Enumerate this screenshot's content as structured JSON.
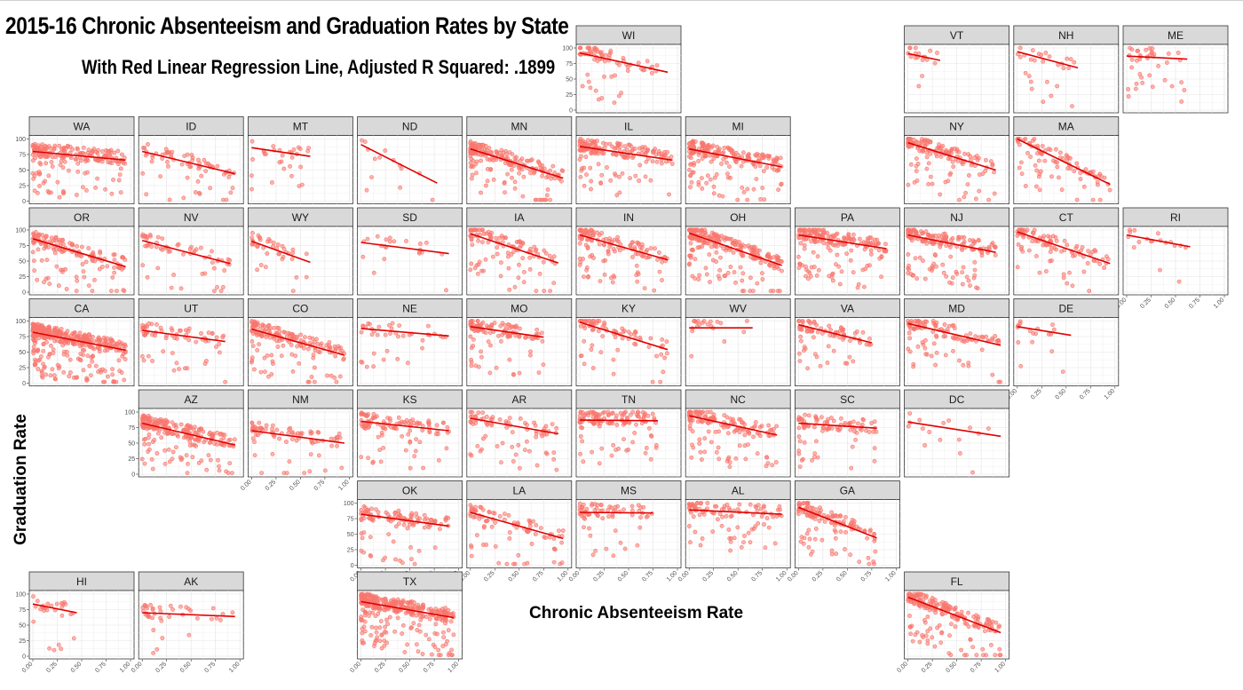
{
  "title": "2015-16 Chronic Absenteeism and Graduation Rates by State",
  "subtitle": "With Red Linear Regression Line, Adjusted R Squared: .1899",
  "chart_data": {
    "type": "scatter",
    "layout": "faceted small multiples arranged as a map of US states",
    "title": "2015-16 Chronic Absenteeism and Graduation Rates by State",
    "subtitle": "With Red Linear Regression Line, Adjusted R Squared: .1899",
    "xlabel": "Chronic Absenteeism Rate",
    "ylabel": "Graduation Rate",
    "xlim": [
      0,
      1
    ],
    "ylim": [
      0,
      100
    ],
    "x_ticks": [
      "0.00",
      "0.25",
      "0.50",
      "0.75",
      "1.00"
    ],
    "y_ticks": [
      "0",
      "25",
      "50",
      "75",
      "100"
    ],
    "grid": true,
    "point_color": "#f8766d",
    "line_color": "#e00000",
    "strip_color": "#d9d9d9",
    "facets": [
      {
        "state": "WI",
        "col": 5,
        "row": 0,
        "n": 70,
        "x_max": 0.9,
        "fit": {
          "x0": 0.0,
          "x1": 0.9,
          "y0": 92,
          "y1": 61
        }
      },
      {
        "state": "VT",
        "col": 8,
        "row": 0,
        "n": 18,
        "x_max": 0.33,
        "fit": {
          "x0": 0.0,
          "x1": 0.33,
          "y0": 91,
          "y1": 80
        }
      },
      {
        "state": "NH",
        "col": 9,
        "row": 0,
        "n": 28,
        "x_max": 0.62,
        "fit": {
          "x0": 0.0,
          "x1": 0.62,
          "y0": 94,
          "y1": 68
        }
      },
      {
        "state": "ME",
        "col": 10,
        "row": 0,
        "n": 40,
        "x_max": 0.62,
        "fit": {
          "x0": 0.0,
          "x1": 0.62,
          "y0": 87,
          "y1": 82
        }
      },
      {
        "state": "WA",
        "col": 0,
        "row": 1,
        "n": 200,
        "x_max": 0.95,
        "fit": {
          "x0": 0.0,
          "x1": 0.95,
          "y0": 80,
          "y1": 66
        }
      },
      {
        "state": "ID",
        "col": 1,
        "row": 1,
        "n": 70,
        "x_max": 0.95,
        "fit": {
          "x0": 0.0,
          "x1": 0.95,
          "y0": 80,
          "y1": 44
        }
      },
      {
        "state": "MT",
        "col": 2,
        "row": 1,
        "n": 30,
        "x_max": 0.6,
        "fit": {
          "x0": 0.0,
          "x1": 0.6,
          "y0": 86,
          "y1": 72
        }
      },
      {
        "state": "ND",
        "col": 3,
        "row": 1,
        "n": 14,
        "x_max": 0.78,
        "fit": {
          "x0": 0.0,
          "x1": 0.78,
          "y0": 91,
          "y1": 29
        }
      },
      {
        "state": "MN",
        "col": 4,
        "row": 1,
        "n": 190,
        "x_max": 0.95,
        "fit": {
          "x0": 0.0,
          "x1": 0.95,
          "y0": 84,
          "y1": 37
        }
      },
      {
        "state": "IL",
        "col": 5,
        "row": 1,
        "n": 170,
        "x_max": 0.95,
        "fit": {
          "x0": 0.0,
          "x1": 0.95,
          "y0": 88,
          "y1": 66
        }
      },
      {
        "state": "MI",
        "col": 6,
        "row": 1,
        "n": 200,
        "x_max": 0.95,
        "fit": {
          "x0": 0.0,
          "x1": 0.95,
          "y0": 84,
          "y1": 55
        }
      },
      {
        "state": "NY",
        "col": 8,
        "row": 1,
        "n": 140,
        "x_max": 0.9,
        "fit": {
          "x0": 0.0,
          "x1": 0.9,
          "y0": 94,
          "y1": 50
        }
      },
      {
        "state": "MA",
        "col": 9,
        "row": 1,
        "n": 90,
        "x_max": 0.95,
        "fit": {
          "x0": 0.0,
          "x1": 0.95,
          "y0": 100,
          "y1": 27
        }
      },
      {
        "state": "OR",
        "col": 0,
        "row": 2,
        "n": 140,
        "x_max": 0.95,
        "fit": {
          "x0": 0.0,
          "x1": 0.95,
          "y0": 86,
          "y1": 41
        }
      },
      {
        "state": "NV",
        "col": 1,
        "row": 2,
        "n": 60,
        "x_max": 0.9,
        "fit": {
          "x0": 0.0,
          "x1": 0.9,
          "y0": 83,
          "y1": 46
        }
      },
      {
        "state": "WY",
        "col": 2,
        "row": 2,
        "n": 40,
        "x_max": 0.6,
        "fit": {
          "x0": 0.0,
          "x1": 0.6,
          "y0": 82,
          "y1": 48
        }
      },
      {
        "state": "SD",
        "col": 3,
        "row": 2,
        "n": 22,
        "x_max": 0.9,
        "fit": {
          "x0": 0.0,
          "x1": 0.9,
          "y0": 80,
          "y1": 62
        }
      },
      {
        "state": "IA",
        "col": 4,
        "row": 2,
        "n": 110,
        "x_max": 0.9,
        "fit": {
          "x0": 0.0,
          "x1": 0.9,
          "y0": 94,
          "y1": 47
        }
      },
      {
        "state": "IN",
        "col": 5,
        "row": 2,
        "n": 130,
        "x_max": 0.9,
        "fit": {
          "x0": 0.0,
          "x1": 0.9,
          "y0": 92,
          "y1": 52
        }
      },
      {
        "state": "OH",
        "col": 6,
        "row": 2,
        "n": 240,
        "x_max": 0.95,
        "fit": {
          "x0": 0.0,
          "x1": 0.95,
          "y0": 95,
          "y1": 43
        }
      },
      {
        "state": "PA",
        "col": 7,
        "row": 2,
        "n": 190,
        "x_max": 0.9,
        "fit": {
          "x0": 0.0,
          "x1": 0.9,
          "y0": 92,
          "y1": 70
        }
      },
      {
        "state": "NJ",
        "col": 8,
        "row": 2,
        "n": 170,
        "x_max": 0.9,
        "fit": {
          "x0": 0.0,
          "x1": 0.9,
          "y0": 92,
          "y1": 64
        }
      },
      {
        "state": "CT",
        "col": 9,
        "row": 2,
        "n": 100,
        "x_max": 0.95,
        "fit": {
          "x0": 0.0,
          "x1": 0.95,
          "y0": 97,
          "y1": 46
        }
      },
      {
        "state": "RI",
        "col": 10,
        "row": 2,
        "n": 18,
        "x_max": 0.65,
        "fit": {
          "x0": 0.0,
          "x1": 0.65,
          "y0": 92,
          "y1": 73
        }
      },
      {
        "state": "CA",
        "col": 0,
        "row": 3,
        "n": 380,
        "x_max": 0.95,
        "fit": {
          "x0": 0.0,
          "x1": 0.95,
          "y0": 82,
          "y1": 53
        }
      },
      {
        "state": "UT",
        "col": 1,
        "row": 3,
        "n": 70,
        "x_max": 0.85,
        "fit": {
          "x0": 0.0,
          "x1": 0.85,
          "y0": 85,
          "y1": 67
        }
      },
      {
        "state": "CO",
        "col": 2,
        "row": 3,
        "n": 170,
        "x_max": 0.95,
        "fit": {
          "x0": 0.0,
          "x1": 0.95,
          "y0": 87,
          "y1": 45
        }
      },
      {
        "state": "NE",
        "col": 3,
        "row": 3,
        "n": 40,
        "x_max": 0.9,
        "fit": {
          "x0": 0.0,
          "x1": 0.9,
          "y0": 88,
          "y1": 76
        }
      },
      {
        "state": "MO",
        "col": 4,
        "row": 3,
        "n": 110,
        "x_max": 0.75,
        "fit": {
          "x0": 0.0,
          "x1": 0.75,
          "y0": 91,
          "y1": 74
        }
      },
      {
        "state": "KY",
        "col": 5,
        "row": 3,
        "n": 80,
        "x_max": 0.9,
        "fit": {
          "x0": 0.0,
          "x1": 0.9,
          "y0": 98,
          "y1": 54
        }
      },
      {
        "state": "WV",
        "col": 6,
        "row": 3,
        "n": 20,
        "x_max": 0.65,
        "fit": {
          "x0": 0.0,
          "x1": 0.65,
          "y0": 89,
          "y1": 89
        }
      },
      {
        "state": "VA",
        "col": 7,
        "row": 3,
        "n": 80,
        "x_max": 0.75,
        "fit": {
          "x0": 0.0,
          "x1": 0.75,
          "y0": 94,
          "y1": 65
        }
      },
      {
        "state": "MD",
        "col": 8,
        "row": 3,
        "n": 110,
        "x_max": 0.95,
        "fit": {
          "x0": 0.0,
          "x1": 0.95,
          "y0": 96,
          "y1": 61
        }
      },
      {
        "state": "DE",
        "col": 9,
        "row": 3,
        "n": 18,
        "x_max": 0.55,
        "fit": {
          "x0": 0.0,
          "x1": 0.55,
          "y0": 91,
          "y1": 77
        }
      },
      {
        "state": "AZ",
        "col": 1,
        "row": 4,
        "n": 220,
        "x_max": 0.95,
        "fit": {
          "x0": 0.0,
          "x1": 0.95,
          "y0": 82,
          "y1": 47
        }
      },
      {
        "state": "NM",
        "col": 2,
        "row": 4,
        "n": 80,
        "x_max": 0.95,
        "fit": {
          "x0": 0.0,
          "x1": 0.95,
          "y0": 70,
          "y1": 50
        }
      },
      {
        "state": "KS",
        "col": 3,
        "row": 4,
        "n": 110,
        "x_max": 0.9,
        "fit": {
          "x0": 0.0,
          "x1": 0.9,
          "y0": 85,
          "y1": 70
        }
      },
      {
        "state": "AR",
        "col": 4,
        "row": 4,
        "n": 80,
        "x_max": 0.9,
        "fit": {
          "x0": 0.0,
          "x1": 0.9,
          "y0": 90,
          "y1": 65
        }
      },
      {
        "state": "TN",
        "col": 5,
        "row": 4,
        "n": 130,
        "x_max": 0.8,
        "fit": {
          "x0": 0.0,
          "x1": 0.8,
          "y0": 87,
          "y1": 86
        }
      },
      {
        "state": "NC",
        "col": 6,
        "row": 4,
        "n": 150,
        "x_max": 0.9,
        "fit": {
          "x0": 0.0,
          "x1": 0.9,
          "y0": 94,
          "y1": 63
        }
      },
      {
        "state": "SC",
        "col": 7,
        "row": 4,
        "n": 90,
        "x_max": 0.8,
        "fit": {
          "x0": 0.0,
          "x1": 0.8,
          "y0": 82,
          "y1": 74
        }
      },
      {
        "state": "DC",
        "col": 8,
        "row": 4,
        "n": 16,
        "x_max": 0.95,
        "fit": {
          "x0": 0.0,
          "x1": 0.95,
          "y0": 84,
          "y1": 61
        }
      },
      {
        "state": "OK",
        "col": 3,
        "row": 5,
        "n": 110,
        "x_max": 0.9,
        "fit": {
          "x0": 0.0,
          "x1": 0.9,
          "y0": 82,
          "y1": 63
        }
      },
      {
        "state": "LA",
        "col": 4,
        "row": 5,
        "n": 90,
        "x_max": 0.95,
        "fit": {
          "x0": 0.0,
          "x1": 0.95,
          "y0": 85,
          "y1": 43
        }
      },
      {
        "state": "MS",
        "col": 5,
        "row": 5,
        "n": 70,
        "x_max": 0.75,
        "fit": {
          "x0": 0.0,
          "x1": 0.75,
          "y0": 85,
          "y1": 84
        }
      },
      {
        "state": "AL",
        "col": 6,
        "row": 5,
        "n": 100,
        "x_max": 0.95,
        "fit": {
          "x0": 0.0,
          "x1": 0.95,
          "y0": 89,
          "y1": 82
        }
      },
      {
        "state": "GA",
        "col": 7,
        "row": 5,
        "n": 130,
        "x_max": 0.8,
        "fit": {
          "x0": 0.0,
          "x1": 0.8,
          "y0": 93,
          "y1": 44
        }
      },
      {
        "state": "HI",
        "col": 0,
        "row": 6,
        "n": 28,
        "x_max": 0.45,
        "fit": {
          "x0": 0.0,
          "x1": 0.45,
          "y0": 84,
          "y1": 70
        }
      },
      {
        "state": "AK",
        "col": 1,
        "row": 6,
        "n": 40,
        "x_max": 0.95,
        "fit": {
          "x0": 0.0,
          "x1": 0.95,
          "y0": 70,
          "y1": 64
        }
      },
      {
        "state": "TX",
        "col": 3,
        "row": 6,
        "n": 330,
        "x_max": 0.95,
        "fit": {
          "x0": 0.0,
          "x1": 0.95,
          "y0": 88,
          "y1": 62
        }
      },
      {
        "state": "FL",
        "col": 8,
        "row": 6,
        "n": 200,
        "x_max": 0.95,
        "fit": {
          "x0": 0.0,
          "x1": 0.95,
          "y0": 95,
          "y1": 38
        }
      }
    ],
    "y_axis_shown_on": [
      "WI",
      "WA",
      "OR",
      "CA",
      "AZ",
      "OK",
      "HI"
    ],
    "x_axis_shown_on": [
      "RI",
      "DE",
      "NM",
      "OK",
      "LA",
      "MS",
      "AL",
      "GA",
      "HI",
      "AK",
      "TX",
      "FL"
    ]
  }
}
